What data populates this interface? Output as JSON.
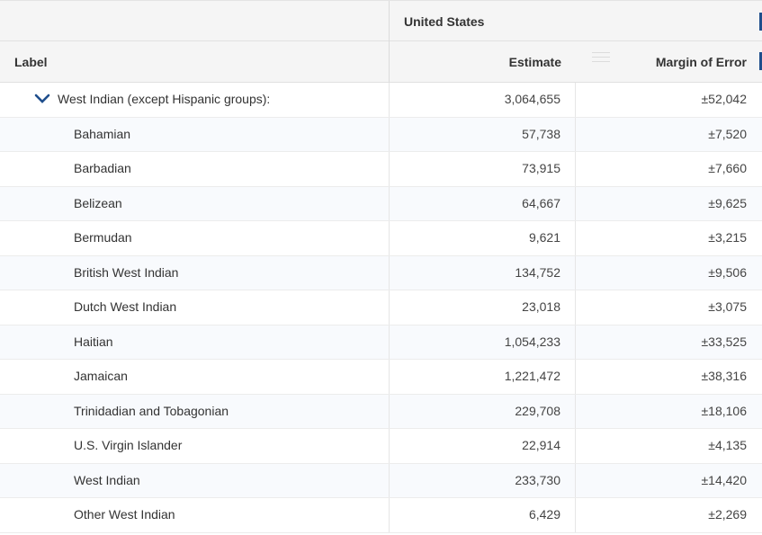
{
  "header": {
    "group": "United States",
    "label_col": "Label",
    "estimate_col": "Estimate",
    "moe_col": "Margin of Error"
  },
  "colors": {
    "accent": "#1f4e8c",
    "header_bg": "#f5f5f5",
    "alt_row": "#f8fafd"
  },
  "rows": [
    {
      "label": "West Indian (except Hispanic groups):",
      "estimate": "3,064,655",
      "moe": "±52,042",
      "expandable": true
    },
    {
      "label": "Bahamian",
      "estimate": "57,738",
      "moe": "±7,520"
    },
    {
      "label": "Barbadian",
      "estimate": "73,915",
      "moe": "±7,660"
    },
    {
      "label": "Belizean",
      "estimate": "64,667",
      "moe": "±9,625"
    },
    {
      "label": "Bermudan",
      "estimate": "9,621",
      "moe": "±3,215"
    },
    {
      "label": "British West Indian",
      "estimate": "134,752",
      "moe": "±9,506"
    },
    {
      "label": "Dutch West Indian",
      "estimate": "23,018",
      "moe": "±3,075"
    },
    {
      "label": "Haitian",
      "estimate": "1,054,233",
      "moe": "±33,525"
    },
    {
      "label": "Jamaican",
      "estimate": "1,221,472",
      "moe": "±38,316"
    },
    {
      "label": "Trinidadian and Tobagonian",
      "estimate": "229,708",
      "moe": "±18,106"
    },
    {
      "label": "U.S. Virgin Islander",
      "estimate": "22,914",
      "moe": "±4,135"
    },
    {
      "label": "West Indian",
      "estimate": "233,730",
      "moe": "±14,420"
    },
    {
      "label": "Other West Indian",
      "estimate": "6,429",
      "moe": "±2,269"
    }
  ]
}
